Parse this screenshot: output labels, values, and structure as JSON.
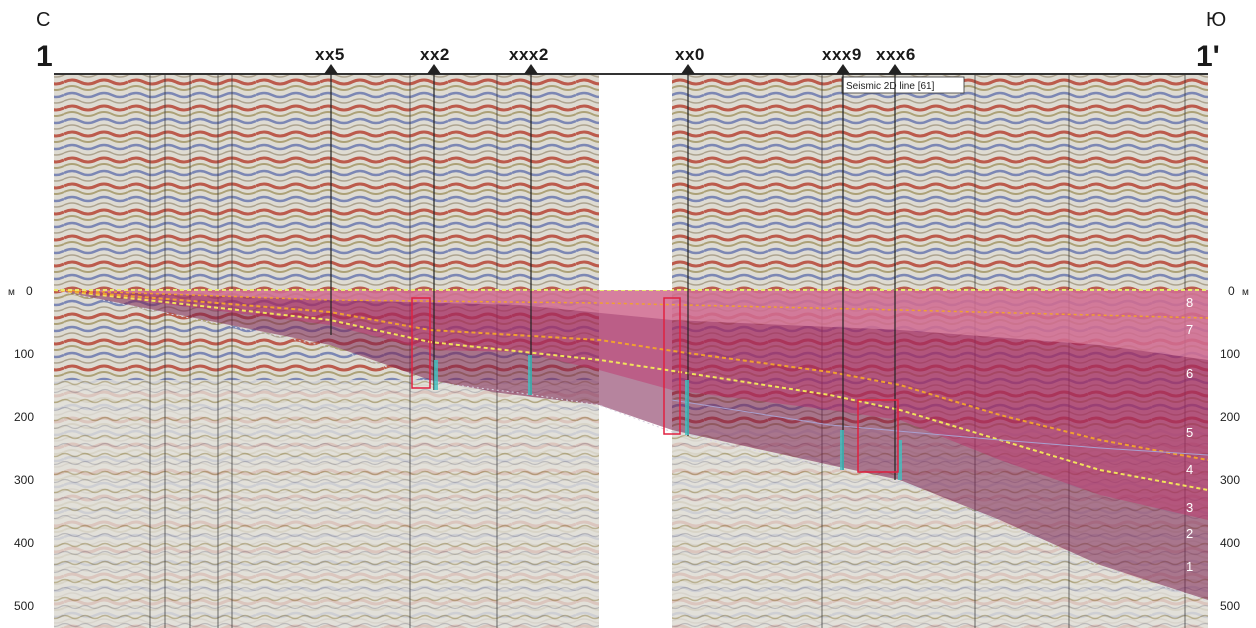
{
  "profile": {
    "left_direction": "С",
    "right_direction": "Ю",
    "left_end": "1",
    "right_end": "1'",
    "line_label": "Seismic 2D line [61]"
  },
  "wells": [
    {
      "name": "xx5"
    },
    {
      "name": "xx2"
    },
    {
      "name": "xxx2"
    },
    {
      "name": "xx0"
    },
    {
      "name": "xxx9"
    },
    {
      "name": "xxx6"
    }
  ],
  "depth_axis": {
    "unit": "м",
    "ticks": [
      "0",
      "100",
      "200",
      "300",
      "400",
      "500"
    ],
    "tick_values": [
      0,
      100,
      200,
      300,
      400,
      500
    ]
  },
  "layers": [
    "8",
    "7",
    "6",
    "5",
    "4",
    "3",
    "2",
    "1"
  ],
  "colors": {
    "seismic_red": "#b0301e",
    "seismic_blue": "#3a4fa0",
    "seismic_olive": "#8a7a3a",
    "unit_dark": "#7a1f4f",
    "unit_mid": "#c0306a",
    "unit_light": "#e77a9a",
    "horizon_yellow": "#f2e35a",
    "horizon_orange": "#f0a030"
  }
}
